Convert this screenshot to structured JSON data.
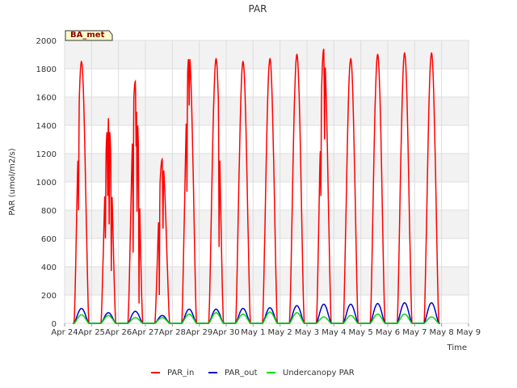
{
  "chart_data": {
    "type": "line",
    "title": "PAR",
    "xlabel": "Time",
    "ylabel": "PAR (umol/m2/s)",
    "site_label": "BA_met",
    "ylim": [
      0,
      2000
    ],
    "xlim": [
      0,
      15
    ],
    "yticks": [
      0,
      200,
      400,
      600,
      800,
      1000,
      1200,
      1400,
      1600,
      1800,
      2000
    ],
    "xtick_labels": [
      "Apr 24",
      "Apr 25",
      "Apr 26",
      "Apr 27",
      "Apr 28",
      "Apr 29",
      "Apr 30",
      "May 1",
      "May 2",
      "May 3",
      "May 4",
      "May 5",
      "May 6",
      "May 7",
      "May 8",
      "May 9"
    ],
    "legend_position": "bottom-center",
    "grid": true,
    "series": [
      {
        "name": "PAR_in",
        "color": "#ff0000",
        "days": [
          {
            "day": 0,
            "peak": 1850,
            "dips": [
              [
                0.3,
                800
              ],
              [
                0.63,
                1700
              ]
            ]
          },
          {
            "day": 1,
            "peak": 1450,
            "dips": [
              [
                0.3,
                600
              ],
              [
                0.45,
                900
              ],
              [
                0.55,
                700
              ],
              [
                0.7,
                370
              ]
            ]
          },
          {
            "day": 2,
            "peak": 1710,
            "dips": [
              [
                0.35,
                500
              ],
              [
                0.55,
                1250
              ],
              [
                0.62,
                720
              ],
              [
                0.75,
                140
              ]
            ]
          },
          {
            "day": 3,
            "peak": 1160,
            "dips": [
              [
                0.3,
                200
              ],
              [
                0.55,
                670
              ],
              [
                0.65,
                1040
              ]
            ]
          },
          {
            "day": 4,
            "peak": 1900,
            "dips": [
              [
                0.35,
                930
              ],
              [
                0.5,
                1540
              ]
            ]
          },
          {
            "day": 5,
            "peak": 1870,
            "dips": [
              [
                0.7,
                540
              ]
            ]
          },
          {
            "day": 6,
            "peak": 1850,
            "dips": []
          },
          {
            "day": 7,
            "peak": 1870,
            "dips": []
          },
          {
            "day": 8,
            "peak": 1900,
            "dips": []
          },
          {
            "day": 9,
            "peak": 1940,
            "dips": [
              [
                0.3,
                900
              ],
              [
                0.55,
                1300
              ]
            ]
          },
          {
            "day": 10,
            "peak": 1870,
            "dips": []
          },
          {
            "day": 11,
            "peak": 1900,
            "dips": []
          },
          {
            "day": 12,
            "peak": 1910,
            "dips": []
          },
          {
            "day": 13,
            "peak": 1910,
            "dips": []
          }
        ]
      },
      {
        "name": "PAR_out",
        "color": "#0000cc",
        "days": [
          {
            "day": 0,
            "peak": 105
          },
          {
            "day": 1,
            "peak": 75
          },
          {
            "day": 2,
            "peak": 85
          },
          {
            "day": 3,
            "peak": 55
          },
          {
            "day": 4,
            "peak": 100
          },
          {
            "day": 5,
            "peak": 100
          },
          {
            "day": 6,
            "peak": 105
          },
          {
            "day": 7,
            "peak": 110
          },
          {
            "day": 8,
            "peak": 125
          },
          {
            "day": 9,
            "peak": 135
          },
          {
            "day": 10,
            "peak": 135
          },
          {
            "day": 11,
            "peak": 140
          },
          {
            "day": 12,
            "peak": 145
          },
          {
            "day": 13,
            "peak": 145
          }
        ]
      },
      {
        "name": "Undercanopy PAR",
        "color": "#00dd00",
        "days": [
          {
            "day": 0,
            "peak": 60
          },
          {
            "day": 1,
            "peak": 55
          },
          {
            "day": 2,
            "peak": 40
          },
          {
            "day": 3,
            "peak": 40
          },
          {
            "day": 4,
            "peak": 65
          },
          {
            "day": 5,
            "peak": 75
          },
          {
            "day": 6,
            "peak": 65
          },
          {
            "day": 7,
            "peak": 80
          },
          {
            "day": 8,
            "peak": 75
          },
          {
            "day": 9,
            "peak": 45
          },
          {
            "day": 10,
            "peak": 55
          },
          {
            "day": 11,
            "peak": 65
          },
          {
            "day": 12,
            "peak": 65
          },
          {
            "day": 13,
            "peak": 45
          }
        ]
      }
    ],
    "day_window": {
      "start": 0.35,
      "end": 0.9
    }
  }
}
